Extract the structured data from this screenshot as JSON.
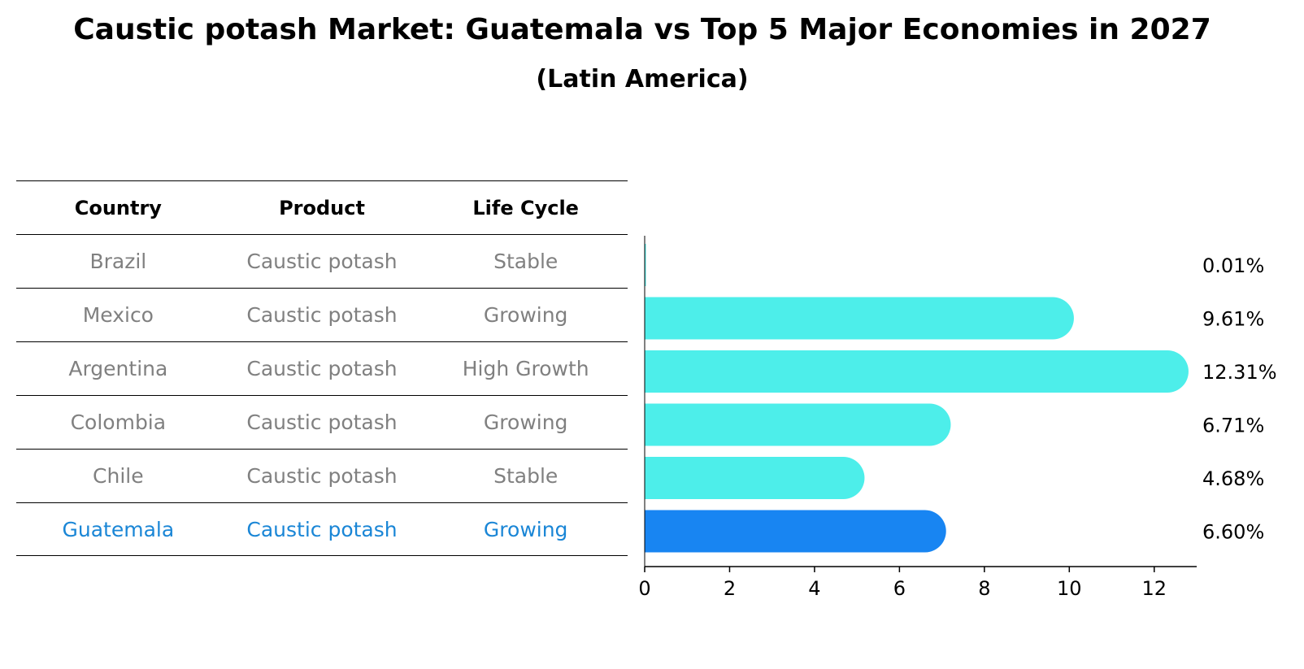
{
  "title": "Caustic potash Market: Guatemala vs Top 5 Major Economies in 2027",
  "subtitle": "(Latin America)",
  "table": {
    "headers": [
      "Country",
      "Product",
      "Life Cycle"
    ],
    "rows": [
      {
        "country": "Brazil",
        "product": "Caustic potash",
        "life_cycle": "Stable"
      },
      {
        "country": "Mexico",
        "product": "Caustic potash",
        "life_cycle": "Growing"
      },
      {
        "country": "Argentina",
        "product": "Caustic potash",
        "life_cycle": "High Growth"
      },
      {
        "country": "Colombia",
        "product": "Caustic potash",
        "life_cycle": "Growing"
      },
      {
        "country": "Chile",
        "product": "Caustic potash",
        "life_cycle": "Stable"
      },
      {
        "country": "Guatemala",
        "product": "Caustic potash",
        "life_cycle": "Growing"
      }
    ]
  },
  "colors": {
    "bar": "#4deeea",
    "highlight_bar": "#1885f2",
    "highlight_text": "#1a86d6",
    "muted_text": "#808080"
  },
  "chart_data": {
    "type": "bar",
    "orientation": "horizontal",
    "categories": [
      "Brazil",
      "Mexico",
      "Argentina",
      "Colombia",
      "Chile",
      "Guatemala"
    ],
    "values": [
      0.01,
      9.61,
      12.31,
      6.71,
      4.68,
      6.6
    ],
    "value_labels": [
      "0.01%",
      "9.61%",
      "12.31%",
      "6.71%",
      "4.68%",
      "6.60%"
    ],
    "highlight": "Guatemala",
    "xlim": [
      0,
      13
    ],
    "xticks": [
      0,
      2,
      4,
      6,
      8,
      10,
      12
    ],
    "xtick_labels": [
      "0",
      "2",
      "4",
      "6",
      "8",
      "10",
      "12"
    ],
    "title": "Caustic potash Market: Guatemala vs Top 5 Major Economies in 2027",
    "xlabel": "",
    "ylabel": "",
    "grid": false
  }
}
